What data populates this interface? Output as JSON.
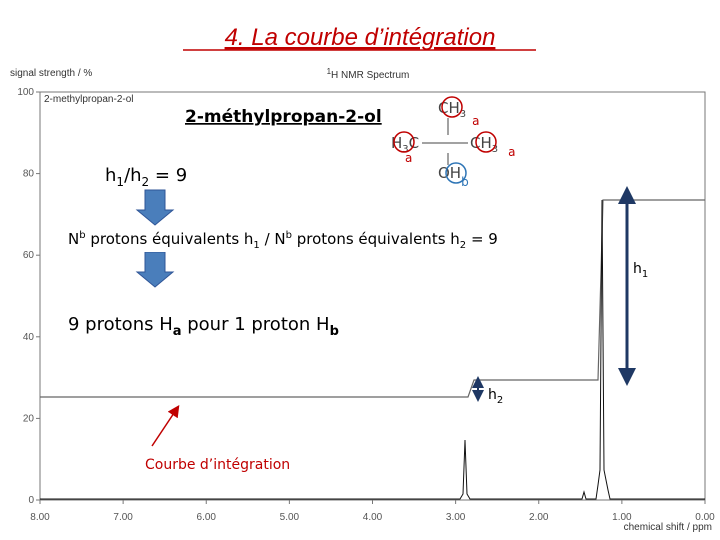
{
  "title": "4. La courbe d’intégration",
  "spectrum": {
    "title_sup": "1",
    "title": "H NMR Spectrum",
    "y_label": "signal strength / %",
    "sample": "2-methylpropan-2-ol",
    "x_label": "chemical shift / ppm",
    "ylim": [
      0,
      100
    ],
    "yticks": [
      0,
      20,
      40,
      60,
      80,
      100
    ],
    "xlim": [
      8,
      0
    ],
    "xticks": [
      {
        "value": 8,
        "label": "8.00"
      },
      {
        "value": 7,
        "label": "7.00"
      },
      {
        "value": 6,
        "label": "6.00"
      },
      {
        "value": 5,
        "label": "5.00"
      },
      {
        "value": 4,
        "label": "4.00"
      },
      {
        "value": 3,
        "label": "3.00"
      },
      {
        "value": 2,
        "label": "2.00"
      },
      {
        "value": 1,
        "label": "1.00"
      },
      {
        "value": 0,
        "label": "0.00"
      }
    ]
  },
  "annotations": {
    "compound": "2-méthylpropan-2-ol",
    "ratio": [
      "h",
      "1",
      "/h",
      "2",
      " = 9"
    ],
    "molecule": {
      "top": [
        "CH",
        "3",
        "a"
      ],
      "left": [
        "H",
        "3",
        "C",
        "a"
      ],
      "right": [
        "CH",
        "3",
        "a"
      ],
      "bottom": [
        "OH",
        "b"
      ]
    },
    "protons_line": [
      "N",
      "b",
      " protons équivalents h",
      "1",
      " / N",
      "b",
      " protons équivalents h",
      "2",
      "  = 9"
    ],
    "conclusion": [
      "9 protons H",
      "a",
      " pour 1 proton H",
      "b"
    ],
    "h1": [
      "h",
      "1"
    ],
    "h2": [
      "h",
      "2"
    ],
    "curve_label": "Courbe d’intégration"
  }
}
